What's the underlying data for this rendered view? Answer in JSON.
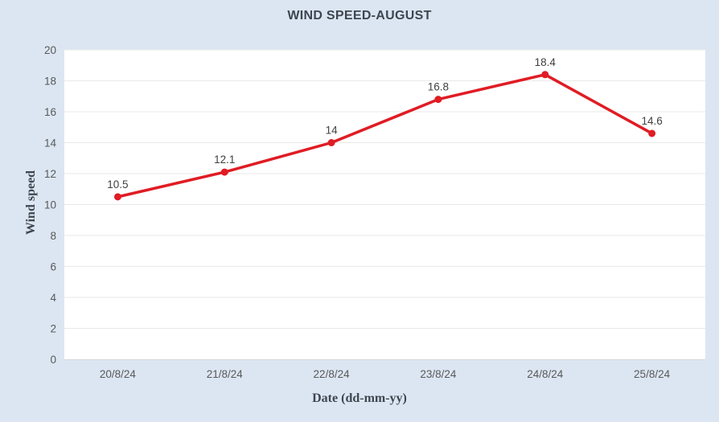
{
  "chart_data": {
    "type": "line",
    "title": "WIND SPEED-AUGUST",
    "xlabel": "Date (dd-mm-yy)",
    "ylabel": "Wind speed",
    "categories": [
      "20/8/24",
      "21/8/24",
      "22/8/24",
      "23/8/24",
      "24/8/24",
      "25/8/24"
    ],
    "values": [
      10.5,
      12.1,
      14,
      16.8,
      18.4,
      14.6
    ],
    "data_labels": [
      "10.5",
      "12.1",
      "14",
      "16.8",
      "18.4",
      "14.6"
    ],
    "ylim": [
      0,
      20
    ],
    "yticks": [
      0,
      2,
      4,
      6,
      8,
      10,
      12,
      14,
      16,
      18,
      20
    ],
    "grid": true,
    "legend": "none",
    "colors": {
      "series": "#e01c24",
      "background": "#dce6f2",
      "plot_background": "#ffffff",
      "gridline": "#e9e9e9",
      "axis_line": "#d2d6da",
      "title_text": "#3f4650",
      "tick_text": "#595959",
      "data_label_text": "#404040"
    }
  }
}
